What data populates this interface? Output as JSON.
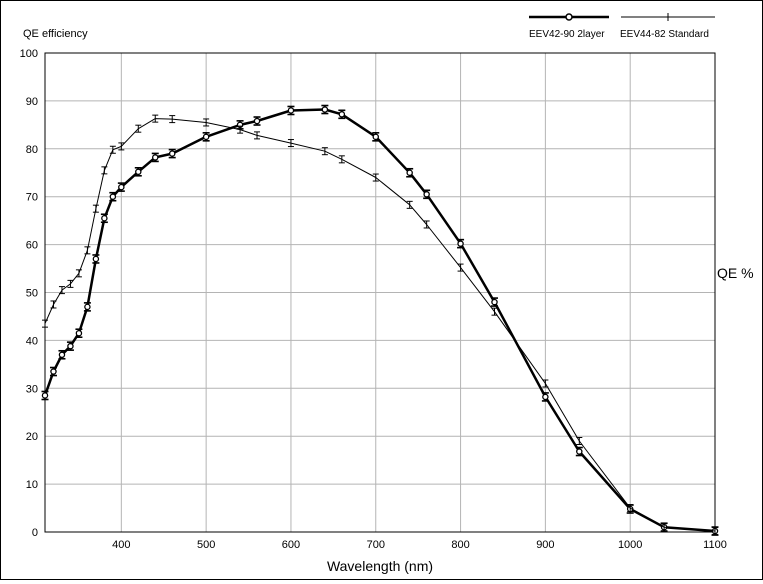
{
  "chart_data": {
    "type": "line",
    "title": "QE efficiency",
    "xlabel": "Wavelength (nm)",
    "ylabel": "QE %",
    "xlim": [
      310,
      1100
    ],
    "ylim": [
      0,
      100
    ],
    "x_ticks": [
      400,
      500,
      600,
      700,
      800,
      900,
      1000,
      1100
    ],
    "y_ticks": [
      0,
      10,
      20,
      30,
      40,
      50,
      60,
      70,
      80,
      90,
      100
    ],
    "grid": true,
    "legend_position": "top-right",
    "series": [
      {
        "name": "EEV42-90 2layer",
        "color": "#000000",
        "line": "thick",
        "marker": "circle",
        "x": [
          310,
          320,
          330,
          340,
          350,
          360,
          370,
          380,
          390,
          400,
          420,
          440,
          460,
          500,
          540,
          560,
          600,
          640,
          660,
          700,
          740,
          760,
          800,
          840,
          900,
          940,
          1000,
          1040,
          1100
        ],
        "y": [
          28.5,
          33.5,
          37,
          38.8,
          41.5,
          47,
          57,
          65.5,
          70,
          72,
          75.2,
          78.2,
          79,
          82.5,
          85,
          85.8,
          88,
          88.2,
          87.2,
          82.5,
          75,
          70.5,
          60.2,
          48,
          28.2,
          16.8,
          4.8,
          1,
          0.2
        ]
      },
      {
        "name": "EEV44-82 Standard",
        "color": "#000000",
        "line": "thin",
        "marker": "plus",
        "x": [
          310,
          320,
          330,
          340,
          350,
          360,
          370,
          380,
          390,
          400,
          420,
          440,
          460,
          500,
          540,
          560,
          600,
          640,
          660,
          700,
          740,
          760,
          800,
          840,
          900,
          940,
          1000,
          1040,
          1100
        ],
        "y": [
          43.5,
          47.5,
          50.5,
          51.8,
          54,
          58.8,
          67.5,
          75.5,
          79.8,
          80.5,
          84.2,
          86.3,
          86.2,
          85.5,
          84,
          82.8,
          81.2,
          79.5,
          77.8,
          74,
          68.3,
          64.2,
          55.2,
          46,
          31,
          19,
          5,
          1,
          0.2
        ]
      }
    ]
  }
}
